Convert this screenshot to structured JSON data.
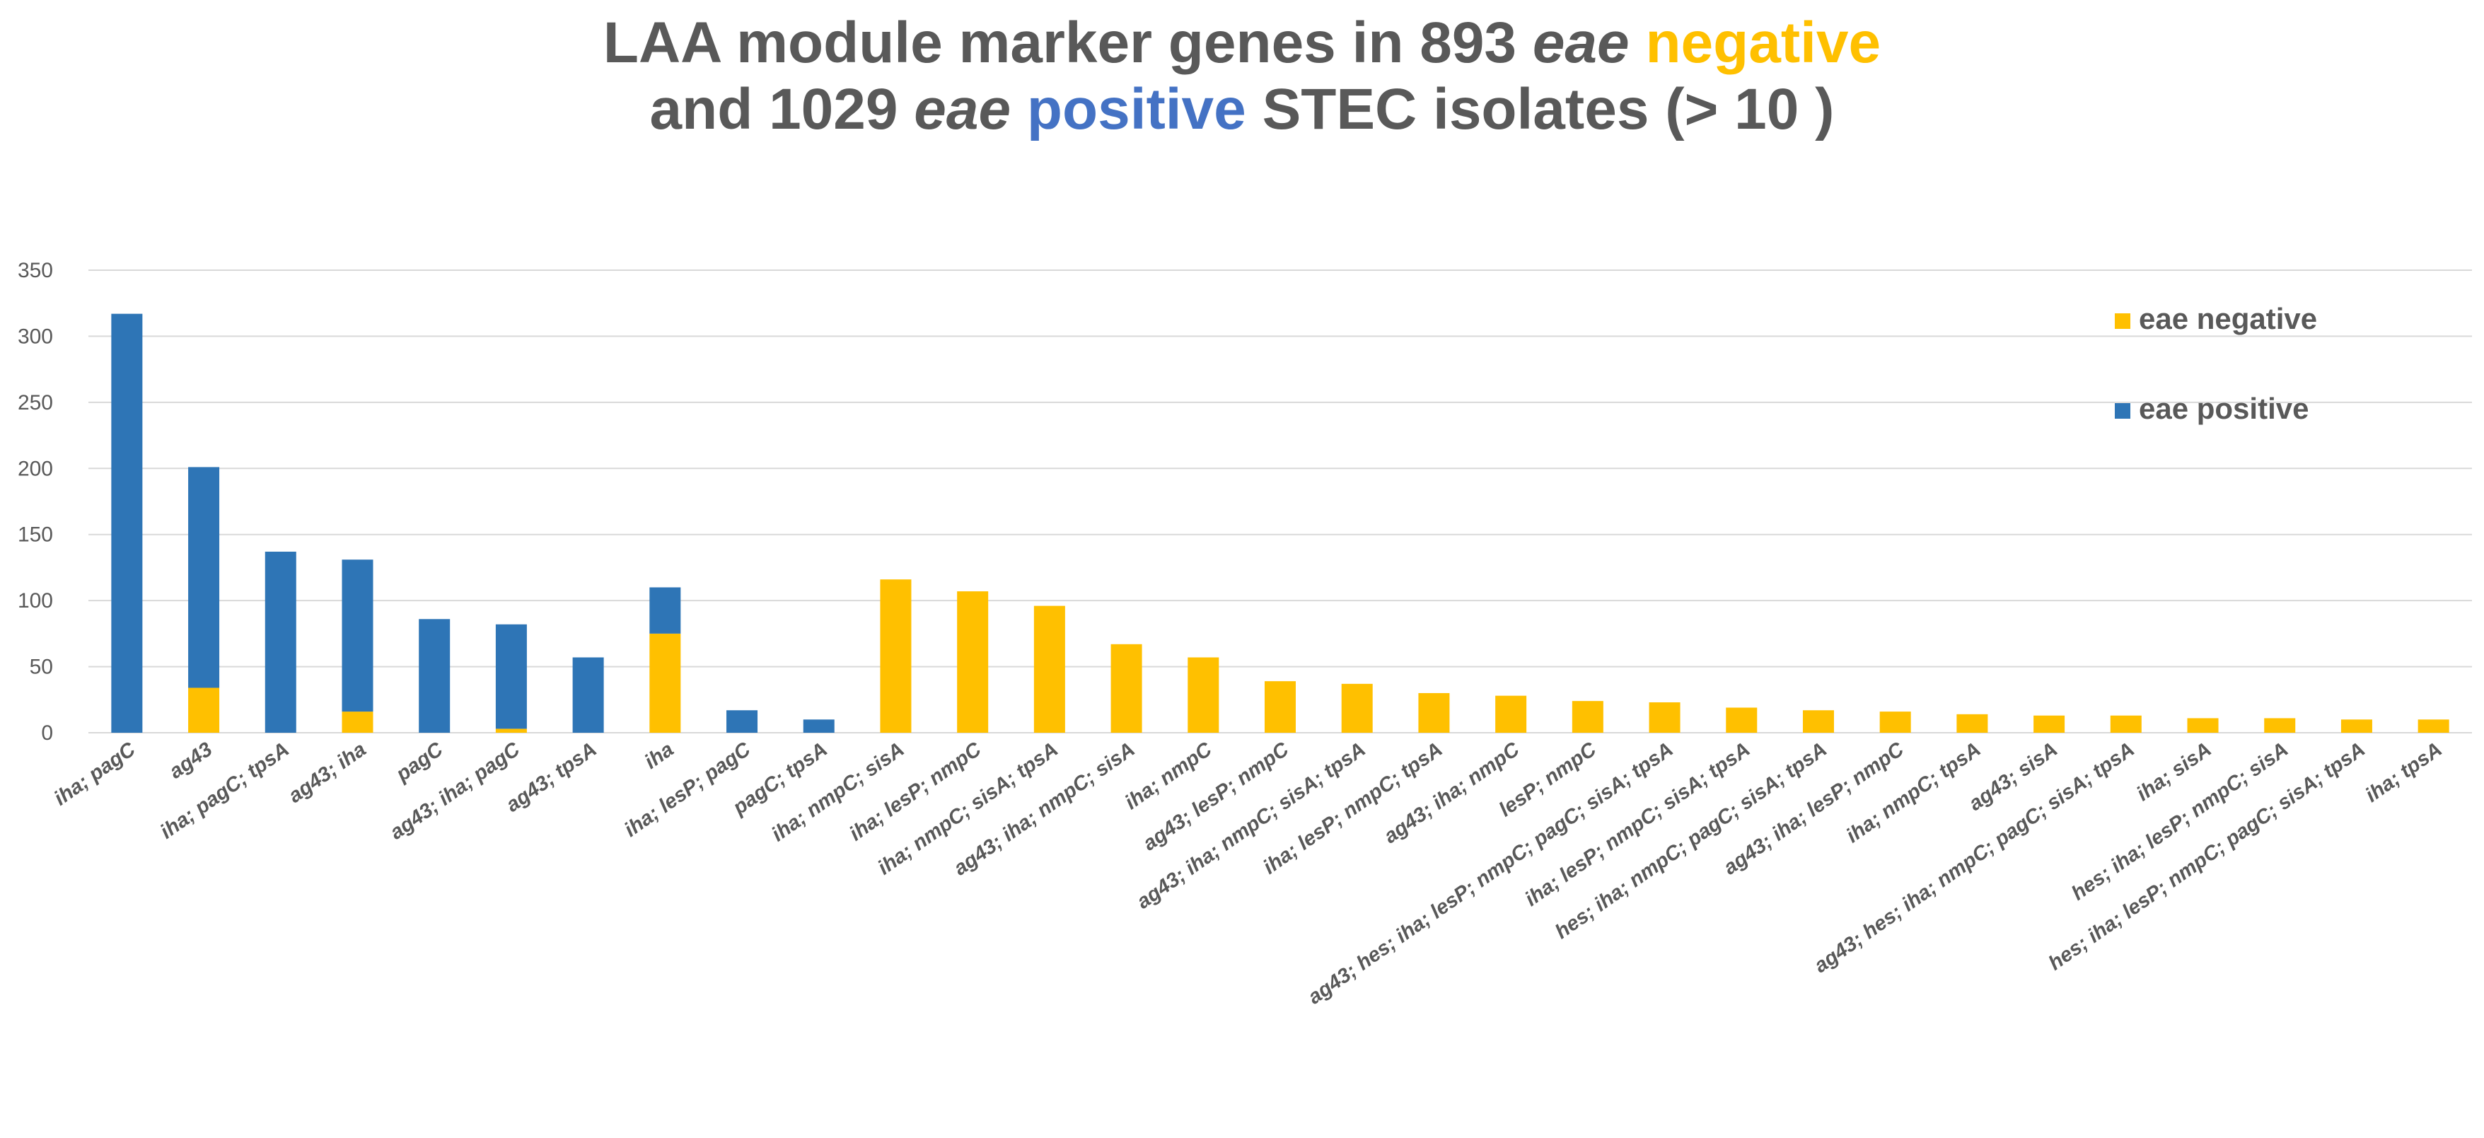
{
  "colors": {
    "negative": "#FFC000",
    "positive": "#2E75B6",
    "negative_title": "#FFC000",
    "positive_title": "#4472C4",
    "title": "#595959",
    "axis_text": "#595959",
    "grid": "#D9D9D9"
  },
  "title": {
    "line1": {
      "prefix": "LAA module marker genes in 893 ",
      "eae": "eae",
      "space": " ",
      "negative": "negative"
    },
    "line2": {
      "prefix": "and  1029  ",
      "eae": "eae",
      "space": " ",
      "positive": "positive",
      "suffix": " STEC isolates (> 10 )"
    }
  },
  "chart_data": {
    "type": "bar",
    "stacked": true,
    "title": "LAA module marker genes in 893 eae negative and 1029 eae positive STEC isolates (> 10 )",
    "xlabel": "",
    "ylabel": "",
    "ylim": [
      0,
      350
    ],
    "yticks": [
      0,
      50,
      100,
      150,
      200,
      250,
      300,
      350
    ],
    "grid": true,
    "legend_position": "top-right",
    "categories": [
      "iha; pagC",
      "ag43",
      "iha; pagC; tpsA",
      "ag43; iha",
      "pagC",
      "ag43; iha; pagC",
      "ag43; tpsA",
      "iha",
      "iha; lesP; pagC",
      "pagC; tpsA",
      "iha; nmpC; sisA",
      "iha; lesP; nmpC",
      "iha; nmpC; sisA; tpsA",
      "ag43; iha; nmpC; sisA",
      "iha; nmpC",
      "ag43; lesP; nmpC",
      "ag43; iha; nmpC; sisA; tpsA",
      "iha; lesP; nmpC; tpsA",
      "ag43; iha; nmpC",
      "lesP; nmpC",
      "ag43; hes; iha; lesP; nmpC; pagC; sisA; tpsA",
      "iha; lesP; nmpC; sisA; tpsA",
      "hes; iha; nmpC; pagC; sisA; tpsA",
      "ag43; iha; lesP; nmpC",
      "iha; nmpC; tpsA",
      "ag43; sisA",
      "ag43; hes; iha; nmpC; pagC; sisA; tpsA",
      "iha; sisA",
      "hes; iha; lesP; nmpC; sisA",
      "hes; iha; lesP; nmpC; pagC; sisA; tpsA",
      "iha; tpsA"
    ],
    "series": [
      {
        "name": "eae negative",
        "color": "#FFC000",
        "values": [
          0,
          34,
          0,
          16,
          0,
          3,
          0,
          75,
          0,
          0,
          116,
          107,
          96,
          67,
          57,
          39,
          37,
          30,
          28,
          24,
          23,
          19,
          17,
          16,
          14,
          13,
          13,
          11,
          11,
          10,
          10
        ]
      },
      {
        "name": "eae positive",
        "color": "#2E75B6",
        "values": [
          317,
          167,
          137,
          115,
          86,
          79,
          57,
          35,
          17,
          10,
          0,
          0,
          0,
          0,
          0,
          0,
          0,
          0,
          0,
          0,
          0,
          0,
          0,
          0,
          0,
          0,
          0,
          0,
          0,
          0,
          0
        ]
      }
    ],
    "legend": [
      "eae negative",
      "eae positive"
    ]
  }
}
